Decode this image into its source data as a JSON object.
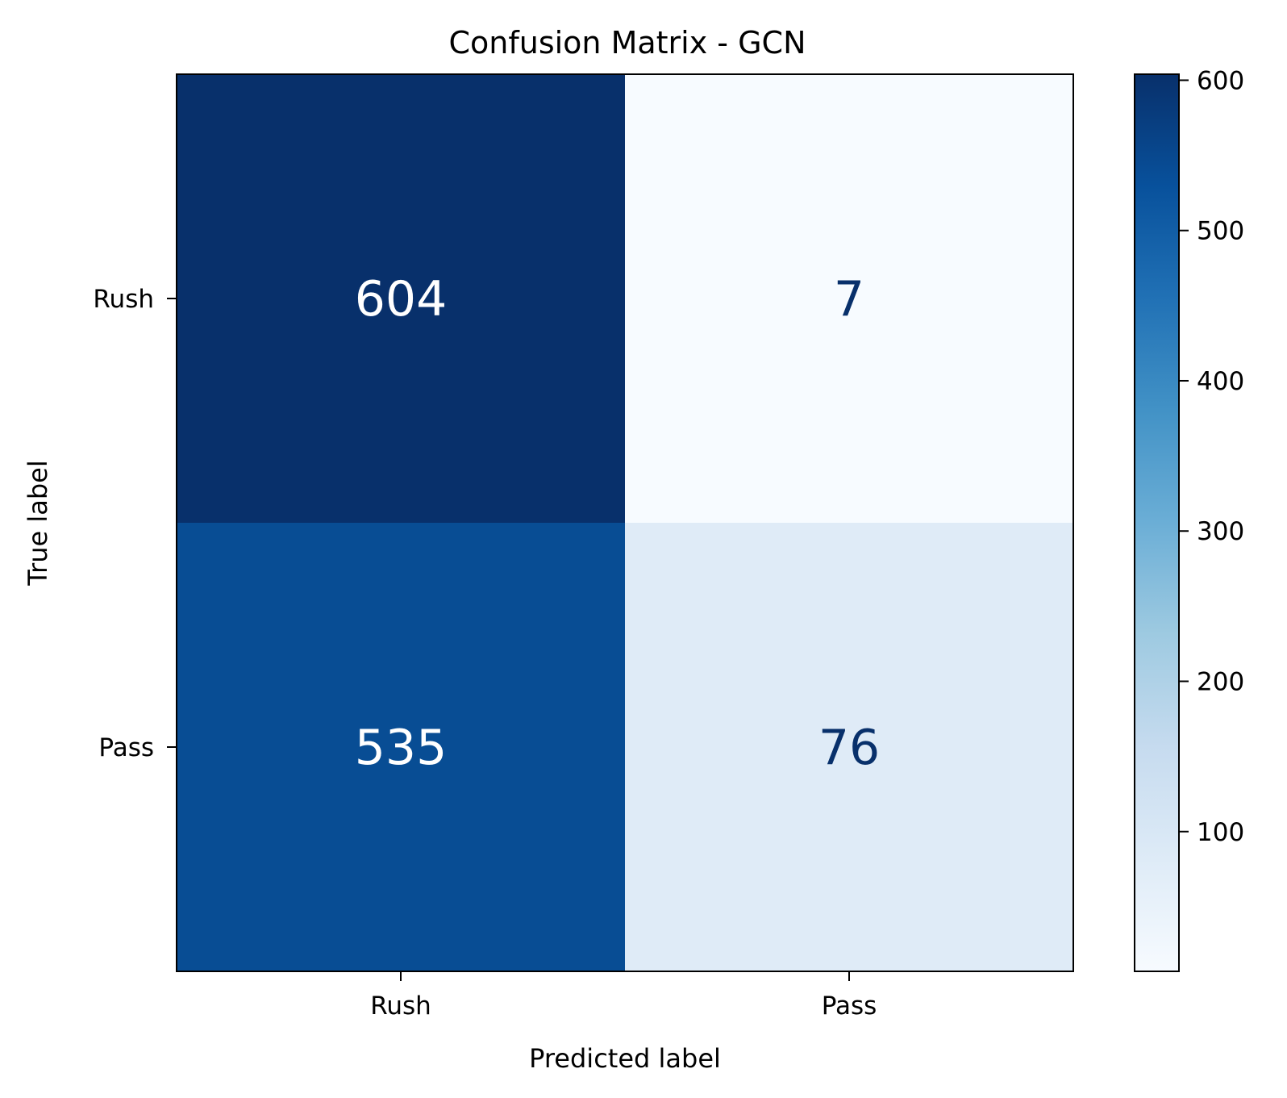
{
  "chart_data": {
    "type": "heatmap",
    "title": "Confusion Matrix - GCN",
    "xlabel": "Predicted label",
    "ylabel": "True label",
    "x_categories": [
      "Rush",
      "Pass"
    ],
    "y_categories": [
      "Rush",
      "Pass"
    ],
    "values": [
      [
        604,
        7
      ],
      [
        535,
        76
      ]
    ],
    "colormap": "Blues",
    "colorbar": {
      "range": [
        7,
        604
      ],
      "ticks": [
        "100",
        "200",
        "300",
        "400",
        "500",
        "600"
      ]
    },
    "colors": {
      "cell_604": "#08306b",
      "cell_7": "#f7fbff",
      "cell_535": "#084d94",
      "cell_76": "#dfebf7",
      "text_on_dark": "#ffffff",
      "text_on_light": "#08306b"
    }
  }
}
